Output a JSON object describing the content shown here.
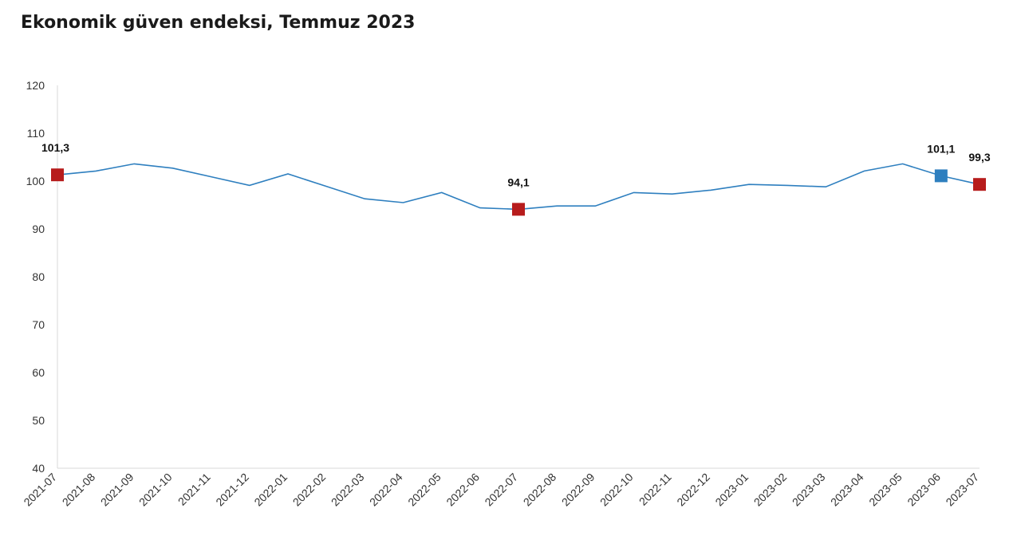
{
  "title": "Ekonomik güven endeksi, Temmuz 2023",
  "chart_data": {
    "type": "line",
    "title": "Ekonomik güven endeksi, Temmuz 2023",
    "xlabel": "",
    "ylabel": "",
    "ylim": [
      40,
      120
    ],
    "yticks": [
      40,
      50,
      60,
      70,
      80,
      90,
      100,
      110,
      120
    ],
    "grid": false,
    "categories": [
      "2021-07",
      "2021-08",
      "2021-09",
      "2021-10",
      "2021-11",
      "2021-12",
      "2022-01",
      "2022-02",
      "2022-03",
      "2022-04",
      "2022-05",
      "2022-06",
      "2022-07",
      "2022-08",
      "2022-09",
      "2022-10",
      "2022-11",
      "2022-12",
      "2023-01",
      "2023-02",
      "2023-03",
      "2023-04",
      "2023-05",
      "2023-06",
      "2023-07"
    ],
    "series": [
      {
        "values": [
          101.3,
          102.1,
          103.6,
          102.7,
          100.9,
          99.1,
          101.5,
          98.9,
          96.3,
          95.5,
          97.6,
          94.4,
          94.1,
          94.8,
          94.8,
          97.6,
          97.3,
          98.1,
          99.3,
          99.1,
          98.8,
          102.1,
          103.6,
          101.1,
          99.3
        ],
        "color": "#2e7fbf"
      }
    ],
    "markers": [
      {
        "category": "2021-07",
        "value": 101.3,
        "label": "101,3",
        "color": "#b71c1c"
      },
      {
        "category": "2022-07",
        "value": 94.1,
        "label": "94,1",
        "color": "#b71c1c"
      },
      {
        "category": "2023-06",
        "value": 101.1,
        "label": "101,1",
        "color": "#2e7fbf"
      },
      {
        "category": "2023-07",
        "value": 99.3,
        "label": "99,3",
        "color": "#b71c1c"
      }
    ]
  }
}
